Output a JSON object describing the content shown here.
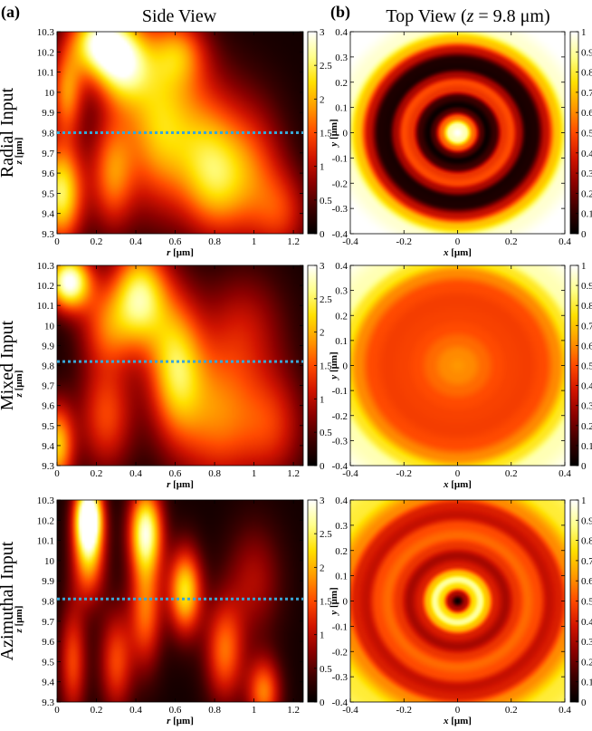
{
  "header": {
    "label_a": "(a)",
    "label_b": "(b)",
    "side_title": "Side View",
    "top_title_prefix": "Top View (",
    "top_title_var": "z",
    "top_title_suffix": " = 9.8 μm)"
  },
  "row_labels": [
    "Radial Input",
    "Mixed Input",
    "Azimuthal Input"
  ],
  "colors": {
    "colormap_hot": [
      "#000000",
      "#3d0000",
      "#8b0000",
      "#d11400",
      "#ff4a00",
      "#ff9a00",
      "#ffe000",
      "#ffff8a",
      "#ffffff"
    ],
    "dotted_line": "#38a8d8"
  },
  "chart_data": [
    {
      "type": "heatmap",
      "view": "side",
      "row": "Radial Input",
      "xlabel_var": "r",
      "xlabel_unit": " [μm]",
      "ylabel_var": "z",
      "ylabel_unit": " [μm]",
      "xlim": [
        0,
        1.25
      ],
      "ylim": [
        9.3,
        10.3
      ],
      "xticks": [
        "0",
        "0.2",
        "0.4",
        "0.6",
        "0.8",
        "1",
        "1.2"
      ],
      "yticks": [
        "9.3",
        "9.4",
        "9.5",
        "9.6",
        "9.7",
        "9.8",
        "9.9",
        "10",
        "10.1",
        "10.2",
        "10.3"
      ],
      "colorbar_range": [
        0,
        3
      ],
      "colorbar_ticks": [
        "0",
        "0.5",
        "1",
        "1.5",
        "2",
        "2.5",
        "3"
      ],
      "dotted_line_z": 9.8,
      "blobs": [
        {
          "r": 0.2,
          "z": 10.25,
          "amp": 2.3,
          "sr": 0.1,
          "sz": 0.12
        },
        {
          "r": 0.33,
          "z": 10.15,
          "amp": 2.2,
          "sr": 0.1,
          "sz": 0.15
        },
        {
          "r": 0.02,
          "z": 9.5,
          "amp": 2.4,
          "sr": 0.08,
          "sz": 0.18
        },
        {
          "r": 0.05,
          "z": 10.0,
          "amp": 1.6,
          "sr": 0.06,
          "sz": 0.15
        },
        {
          "r": 0.28,
          "z": 9.6,
          "amp": 1.5,
          "sr": 0.08,
          "sz": 0.2
        },
        {
          "r": 0.5,
          "z": 9.85,
          "amp": 1.6,
          "sr": 0.12,
          "sz": 0.3
        },
        {
          "r": 0.62,
          "z": 10.2,
          "amp": 1.2,
          "sr": 0.1,
          "sz": 0.12
        },
        {
          "r": 0.8,
          "z": 9.55,
          "amp": 1.4,
          "sr": 0.12,
          "sz": 0.2
        },
        {
          "r": 0.72,
          "z": 9.8,
          "amp": 1.2,
          "sr": 0.15,
          "sz": 0.25
        },
        {
          "r": 1.0,
          "z": 9.6,
          "amp": 1.1,
          "sr": 0.12,
          "sz": 0.25
        },
        {
          "r": 1.15,
          "z": 9.4,
          "amp": 0.9,
          "sr": 0.1,
          "sz": 0.15
        }
      ]
    },
    {
      "type": "heatmap",
      "view": "side",
      "row": "Mixed Input",
      "xlabel_var": "r",
      "xlabel_unit": " [μm]",
      "ylabel_var": "z",
      "ylabel_unit": " [μm]",
      "xlim": [
        0,
        1.25
      ],
      "ylim": [
        9.3,
        10.3
      ],
      "xticks": [
        "0",
        "0.2",
        "0.4",
        "0.6",
        "0.8",
        "1",
        "1.2"
      ],
      "yticks": [
        "9.3",
        "9.4",
        "9.5",
        "9.6",
        "9.7",
        "9.8",
        "9.9",
        "10",
        "10.1",
        "10.2",
        "10.3"
      ],
      "colorbar_range": [
        0,
        3
      ],
      "colorbar_ticks": [
        "0",
        "0.5",
        "1",
        "1.5",
        "2",
        "2.5",
        "3"
      ],
      "dotted_line_z": 9.82,
      "blobs": [
        {
          "r": 0.06,
          "z": 10.22,
          "amp": 2.9,
          "sr": 0.08,
          "sz": 0.1
        },
        {
          "r": 0.42,
          "z": 10.15,
          "amp": 2.3,
          "sr": 0.1,
          "sz": 0.18
        },
        {
          "r": 0.6,
          "z": 9.8,
          "amp": 2.0,
          "sr": 0.1,
          "sz": 0.25
        },
        {
          "r": 0.0,
          "z": 9.4,
          "amp": 2.0,
          "sr": 0.06,
          "sz": 0.15
        },
        {
          "r": 0.25,
          "z": 9.55,
          "amp": 1.3,
          "sr": 0.1,
          "sz": 0.2
        },
        {
          "r": 0.25,
          "z": 10.0,
          "amp": 1.2,
          "sr": 0.1,
          "sz": 0.15
        },
        {
          "r": 0.82,
          "z": 9.55,
          "amp": 1.5,
          "sr": 0.15,
          "sz": 0.25
        },
        {
          "r": 0.95,
          "z": 10.0,
          "amp": 0.8,
          "sr": 0.15,
          "sz": 0.2
        },
        {
          "r": 1.1,
          "z": 9.5,
          "amp": 1.0,
          "sr": 0.12,
          "sz": 0.2
        }
      ]
    },
    {
      "type": "heatmap",
      "view": "side",
      "row": "Azimuthal Input",
      "xlabel_var": "r",
      "xlabel_unit": " [μm]",
      "ylabel_var": "z",
      "ylabel_unit": " [μm]",
      "xlim": [
        0,
        1.25
      ],
      "ylim": [
        9.3,
        10.3
      ],
      "xticks": [
        "0",
        "0.2",
        "0.4",
        "0.6",
        "0.8",
        "1",
        "1.2"
      ],
      "yticks": [
        "9.3",
        "9.4",
        "9.5",
        "9.6",
        "9.7",
        "9.8",
        "9.9",
        "10",
        "10.1",
        "10.2",
        "10.3"
      ],
      "colorbar_range": [
        0,
        3
      ],
      "colorbar_ticks": [
        "0",
        "0.5",
        "1",
        "1.5",
        "2",
        "2.5",
        "3"
      ],
      "dotted_line_z": 9.81,
      "blobs": [
        {
          "r": 0.16,
          "z": 10.22,
          "amp": 3.4,
          "sr": 0.05,
          "sz": 0.12
        },
        {
          "r": 0.16,
          "z": 10.0,
          "amp": 1.6,
          "sr": 0.06,
          "sz": 0.15
        },
        {
          "r": 0.45,
          "z": 10.15,
          "amp": 2.6,
          "sr": 0.06,
          "sz": 0.15
        },
        {
          "r": 0.45,
          "z": 9.75,
          "amp": 1.5,
          "sr": 0.06,
          "sz": 0.2
        },
        {
          "r": 0.65,
          "z": 9.85,
          "amp": 2.2,
          "sr": 0.06,
          "sz": 0.15
        },
        {
          "r": 0.3,
          "z": 9.5,
          "amp": 1.3,
          "sr": 0.06,
          "sz": 0.18
        },
        {
          "r": 0.08,
          "z": 9.5,
          "amp": 1.3,
          "sr": 0.05,
          "sz": 0.2
        },
        {
          "r": 0.85,
          "z": 9.55,
          "amp": 1.5,
          "sr": 0.07,
          "sz": 0.18
        },
        {
          "r": 1.05,
          "z": 9.35,
          "amp": 1.6,
          "sr": 0.06,
          "sz": 0.12
        },
        {
          "r": 1.0,
          "z": 9.9,
          "amp": 0.8,
          "sr": 0.1,
          "sz": 0.2
        }
      ]
    },
    {
      "type": "heatmap",
      "view": "top",
      "row": "Radial Input",
      "xlabel_var": "x",
      "xlabel_unit": " [μm]",
      "ylabel_var": "y",
      "ylabel_unit": " [μm]",
      "xlim": [
        -0.4,
        0.4
      ],
      "ylim": [
        -0.4,
        0.4
      ],
      "xticks": [
        "-0.4",
        "-0.2",
        "0",
        "0.2",
        "0.4"
      ],
      "yticks": [
        "-0.4",
        "-0.3",
        "-0.2",
        "-0.1",
        "0",
        "0.1",
        "0.2",
        "0.3",
        "0.4"
      ],
      "colorbar_range": [
        0,
        1
      ],
      "colorbar_ticks": [
        "0",
        "0.1",
        "0.2",
        "0.3",
        "0.4",
        "0.5",
        "0.6",
        "0.7",
        "0.8",
        "0.9",
        "1"
      ],
      "radial_profile": [
        [
          0,
          1.0
        ],
        [
          0.03,
          0.92
        ],
        [
          0.06,
          0.55
        ],
        [
          0.09,
          0.15
        ],
        [
          0.11,
          0.02
        ],
        [
          0.14,
          0.12
        ],
        [
          0.17,
          0.45
        ],
        [
          0.2,
          0.5
        ],
        [
          0.23,
          0.3
        ],
        [
          0.26,
          0.05
        ],
        [
          0.29,
          0.06
        ],
        [
          0.33,
          0.35
        ],
        [
          0.37,
          0.7
        ],
        [
          0.42,
          0.95
        ],
        [
          0.5,
          1.0
        ],
        [
          0.6,
          1.0
        ]
      ]
    },
    {
      "type": "heatmap",
      "view": "top",
      "row": "Mixed Input",
      "xlabel_var": "x",
      "xlabel_unit": " [μm]",
      "ylabel_var": "y",
      "ylabel_unit": " [μm]",
      "xlim": [
        -0.4,
        0.4
      ],
      "ylim": [
        -0.4,
        0.4
      ],
      "xticks": [
        "-0.4",
        "-0.2",
        "0",
        "0.2",
        "0.4"
      ],
      "yticks": [
        "-0.4",
        "-0.3",
        "-0.2",
        "-0.1",
        "0",
        "0.1",
        "0.2",
        "0.3",
        "0.4"
      ],
      "colorbar_range": [
        0,
        1
      ],
      "colorbar_ticks": [
        "0",
        "0.1",
        "0.2",
        "0.3",
        "0.4",
        "0.5",
        "0.6",
        "0.7",
        "0.8",
        "0.9",
        "1"
      ],
      "radial_profile": [
        [
          0,
          0.62
        ],
        [
          0.05,
          0.6
        ],
        [
          0.1,
          0.55
        ],
        [
          0.15,
          0.5
        ],
        [
          0.2,
          0.48
        ],
        [
          0.26,
          0.47
        ],
        [
          0.32,
          0.5
        ],
        [
          0.37,
          0.6
        ],
        [
          0.42,
          0.78
        ],
        [
          0.47,
          0.92
        ],
        [
          0.6,
          1.0
        ]
      ]
    },
    {
      "type": "heatmap",
      "view": "top",
      "row": "Azimuthal Input",
      "xlabel_var": "x",
      "xlabel_unit": " [μm]",
      "ylabel_var": "y",
      "ylabel_unit": " [μm]",
      "xlim": [
        -0.4,
        0.4
      ],
      "ylim": [
        -0.4,
        0.4
      ],
      "xticks": [
        "-0.4",
        "-0.2",
        "0",
        "0.2",
        "0.4"
      ],
      "yticks": [
        "-0.4",
        "-0.3",
        "-0.2",
        "-0.1",
        "0",
        "0.1",
        "0.2",
        "0.3",
        "0.4"
      ],
      "colorbar_range": [
        0,
        1
      ],
      "colorbar_ticks": [
        "0",
        "0.1",
        "0.2",
        "0.3",
        "0.4",
        "0.5",
        "0.6",
        "0.7",
        "0.8",
        "0.9",
        "1"
      ],
      "radial_profile": [
        [
          0,
          0.0
        ],
        [
          0.03,
          0.3
        ],
        [
          0.06,
          0.75
        ],
        [
          0.085,
          0.9
        ],
        [
          0.11,
          0.7
        ],
        [
          0.14,
          0.4
        ],
        [
          0.18,
          0.3
        ],
        [
          0.22,
          0.45
        ],
        [
          0.26,
          0.55
        ],
        [
          0.3,
          0.5
        ],
        [
          0.34,
          0.35
        ],
        [
          0.38,
          0.4
        ],
        [
          0.42,
          0.6
        ],
        [
          0.5,
          0.8
        ],
        [
          0.6,
          0.85
        ]
      ]
    }
  ]
}
